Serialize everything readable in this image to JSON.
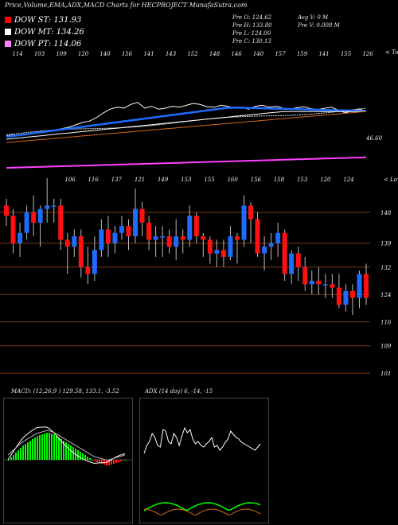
{
  "header": {
    "title": "Price,Volume,EMA,ADX,MACD Charts for HECPROJECT MunafaSutra.com"
  },
  "dow": [
    {
      "label": "DOW ST:",
      "value": "131.93",
      "color": "#ff0000"
    },
    {
      "label": "DOW MT:",
      "value": "134.26",
      "color": "#ffffff"
    },
    {
      "label": "DOW PT:",
      "value": "114.06",
      "color": "#ff80ff"
    }
  ],
  "info": {
    "open": "Pre   O: 124.62",
    "high": "Pre   H: 133.80",
    "low": "Pre   L: 124.00",
    "close": "Pre   C: 130.13",
    "avg_vol": "Avg V: 0   M",
    "pre_vol": "Pre   V: 0.008   M"
  },
  "ema_panel": {
    "top_values": [
      "114",
      "103",
      "109",
      "120",
      "140",
      "156",
      "141",
      "143",
      "152",
      "148",
      "146",
      "140",
      "157",
      "159",
      "141",
      "155",
      "126"
    ],
    "right_label": "< Tops",
    "level_label": "46.60"
  },
  "candle_panel": {
    "low_values": [
      "106",
      "116",
      "137",
      "121",
      "149",
      "153",
      "155",
      "160",
      "156",
      "158",
      "153",
      "120",
      "124"
    ],
    "right_label": "< Lows",
    "price_axis": [
      "148",
      "139",
      "132",
      "124",
      "116",
      "109",
      "101"
    ],
    "price_lines": [
      148,
      139,
      132,
      124,
      116,
      109,
      101
    ],
    "chart_data": {
      "type": "candlestick",
      "open": [
        150,
        147,
        139,
        142,
        148,
        145,
        149,
        150,
        150,
        140,
        138,
        141,
        132,
        130,
        137,
        143,
        139,
        142,
        144,
        141,
        149,
        145,
        140,
        141,
        141,
        138,
        141,
        140,
        147,
        141,
        140,
        136,
        137,
        135,
        141,
        140,
        150,
        146,
        136,
        138,
        139,
        142,
        130,
        136,
        132,
        127,
        128,
        127,
        127,
        126,
        121,
        125,
        123,
        130
      ],
      "close": [
        147,
        139,
        142,
        148,
        145,
        149,
        150,
        150,
        140,
        138,
        141,
        132,
        130,
        137,
        143,
        139,
        142,
        144,
        141,
        149,
        145,
        140,
        141,
        141,
        138,
        141,
        140,
        147,
        141,
        140,
        136,
        137,
        135,
        141,
        140,
        150,
        146,
        136,
        138,
        139,
        142,
        130,
        136,
        132,
        127,
        128,
        127,
        127,
        126,
        121,
        125,
        123,
        130,
        123
      ],
      "high": [
        152,
        149,
        145,
        150,
        153,
        150,
        158,
        152,
        152,
        142,
        143,
        143,
        138,
        141,
        146,
        147,
        144,
        147,
        146,
        155,
        151,
        147,
        144,
        144,
        143,
        146,
        143,
        150,
        148,
        142,
        141,
        140,
        140,
        144,
        142,
        153,
        151,
        148,
        141,
        142,
        145,
        143,
        137,
        138,
        135,
        131,
        132,
        130,
        130,
        130,
        127,
        127,
        131,
        133
      ],
      "low": [
        144,
        136,
        135,
        140,
        141,
        138,
        145,
        145,
        137,
        130,
        135,
        129,
        127,
        128,
        135,
        135,
        136,
        140,
        137,
        139,
        141,
        137,
        135,
        135,
        136,
        134,
        136,
        138,
        139,
        135,
        133,
        132,
        132,
        134,
        133,
        138,
        139,
        135,
        131,
        134,
        135,
        128,
        127,
        128,
        125,
        124,
        124,
        123,
        123,
        120,
        119,
        118,
        120,
        121
      ]
    }
  },
  "macd": {
    "title": "MACD: (12,26,9 ) 129.58,  133.1,  -3.52"
  },
  "adx": {
    "title": "ADX           (14  day) 6,  -14,  -15"
  }
}
